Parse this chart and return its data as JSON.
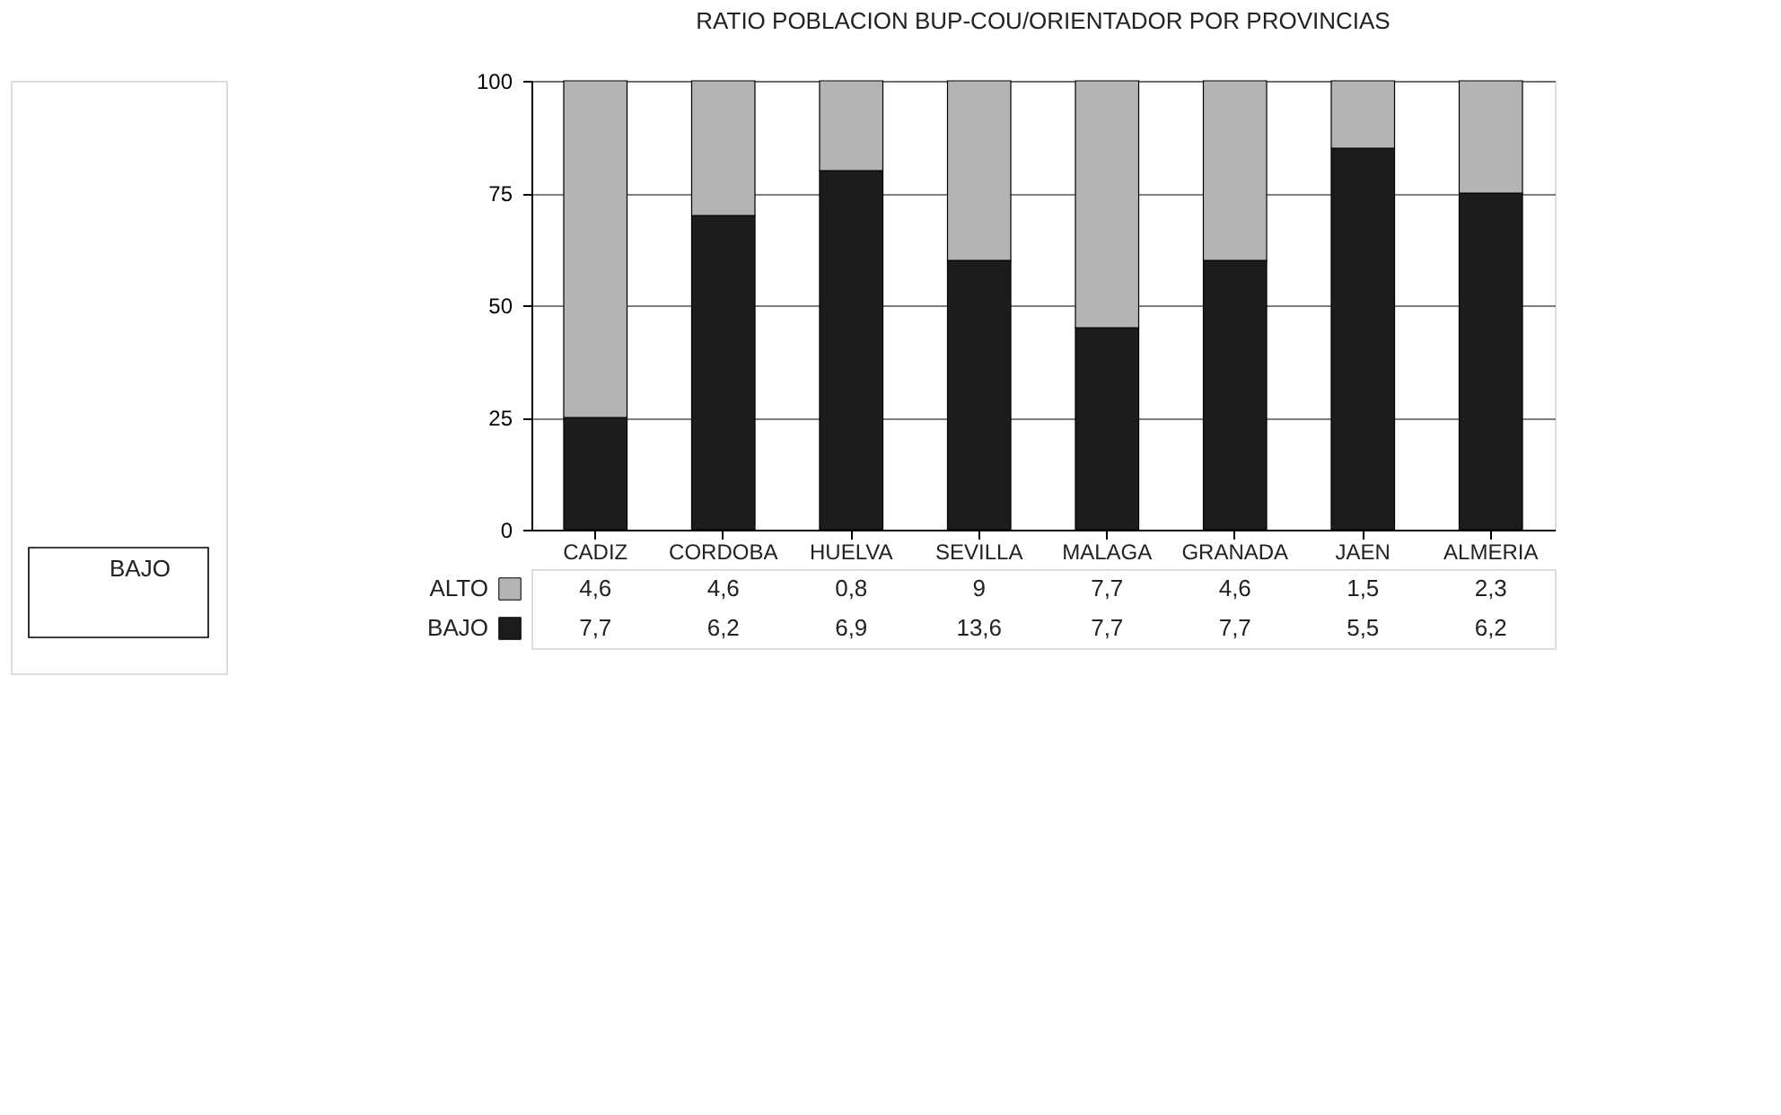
{
  "chart_data": {
    "type": "bar",
    "title": "RATIO POBLACION BUP-COU/ORIENTADOR POR PROVINCIAS",
    "categories": [
      "CADIZ",
      "CORDOBA",
      "HUELVA",
      "SEVILLA",
      "MALAGA",
      "GRANADA",
      "JAEN",
      "ALMERIA"
    ],
    "stacked": true,
    "series": [
      {
        "name": "BAJO",
        "color": "#1c1c1c",
        "values": [
          25,
          70,
          80,
          60,
          45,
          60,
          85,
          75
        ]
      },
      {
        "name": "ALTO",
        "color": "#b4b4b4",
        "values": [
          75,
          30,
          20,
          40,
          55,
          40,
          15,
          25
        ]
      }
    ],
    "ylim": [
      0,
      100
    ],
    "yticks": [
      0,
      25,
      50,
      75,
      100
    ],
    "grid": "y",
    "legend": "bottom",
    "annotations": [
      "BAJO",
      "4,6",
      "4,6",
      "0,8",
      "9",
      "7,7",
      "4,6",
      "1,5",
      "2,3",
      "7,7",
      "6,2",
      "6,9",
      "13,6",
      "7,7",
      "7,7",
      "5,5",
      "6,2"
    ]
  }
}
